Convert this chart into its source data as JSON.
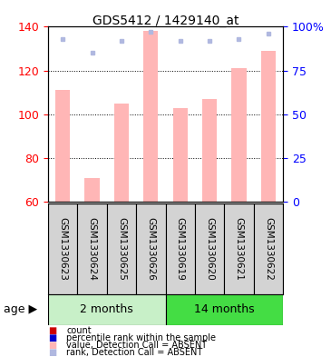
{
  "title": "GDS5412 / 1429140_at",
  "samples": [
    "GSM1330623",
    "GSM1330624",
    "GSM1330625",
    "GSM1330626",
    "GSM1330619",
    "GSM1330620",
    "GSM1330621",
    "GSM1330622"
  ],
  "values_absent": [
    111,
    71,
    105,
    138,
    103,
    107,
    121,
    129
  ],
  "rank_absent": [
    93,
    null,
    92,
    97,
    92,
    92,
    93,
    96
  ],
  "rank_dot_absent": [
    null,
    85,
    null,
    null,
    null,
    null,
    null,
    null
  ],
  "ylim_left": [
    60,
    140
  ],
  "ylim_right": [
    0,
    100
  ],
  "yticks_left": [
    60,
    80,
    100,
    120,
    140
  ],
  "yticks_right": [
    0,
    25,
    50,
    75,
    100
  ],
  "yticklabels_right": [
    "0",
    "25",
    "50",
    "75",
    "100%"
  ],
  "group1_label": "2 months",
  "group2_label": "14 months",
  "group1_color": "#C8F0C8",
  "group2_color": "#44DD44",
  "age_label": "age",
  "bar_color_absent": "#FFB6B6",
  "rank_color_absent": "#B0B8E0",
  "bar_width": 0.5,
  "background_plot": "#FFFFFF",
  "background_label": "#D3D3D3",
  "legend_items": [
    {
      "color": "#CC0000",
      "label": "count"
    },
    {
      "color": "#0000CC",
      "label": "percentile rank within the sample"
    },
    {
      "color": "#FFB6B6",
      "label": "value, Detection Call = ABSENT"
    },
    {
      "color": "#B0B8E0",
      "label": "rank, Detection Call = ABSENT"
    }
  ]
}
